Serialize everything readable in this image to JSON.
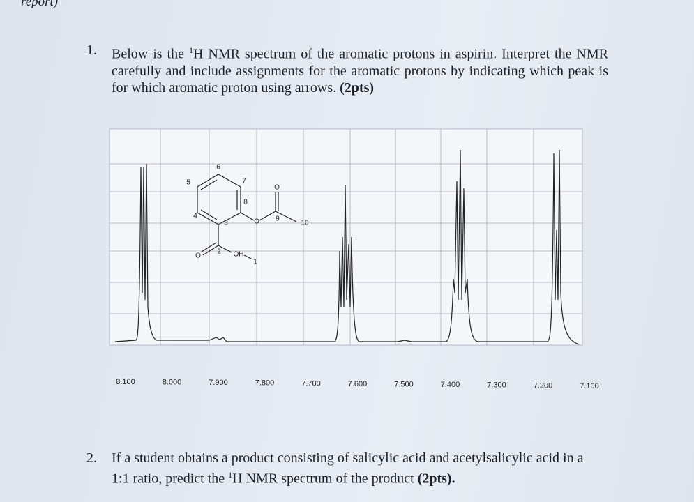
{
  "header": {
    "fragment": "report)"
  },
  "question_1": {
    "number": "1.",
    "text_before": "Below is the ",
    "superscript": "1",
    "text_after": "H NMR spectrum of the aromatic protons in aspirin. Interpret the NMR carefully and include assignments for the aromatic protons by indicating which peak is for which aromatic proton using arrows. ",
    "points": "(2pts)"
  },
  "spectrum": {
    "x_tick_labels": [
      "8.100",
      "8.000",
      "7.900",
      "7.800",
      "7.700",
      "7.600",
      "7.500",
      "7.400",
      "7.300",
      "7.200",
      "7.100"
    ],
    "structure_labels": [
      "6",
      "5",
      "7",
      "8",
      "4",
      "3",
      "O",
      "9",
      "10",
      "O",
      "2",
      "OH",
      "1",
      "O"
    ]
  },
  "question_2": {
    "number": "2.",
    "text_before": "If a student obtains a product consisting of salicylic acid and acetylsalicylic acid in a 1:1 ratio, predict the ",
    "superscript": "1",
    "text_after": "H NMR spectrum of the product ",
    "points": "(2pts)."
  }
}
